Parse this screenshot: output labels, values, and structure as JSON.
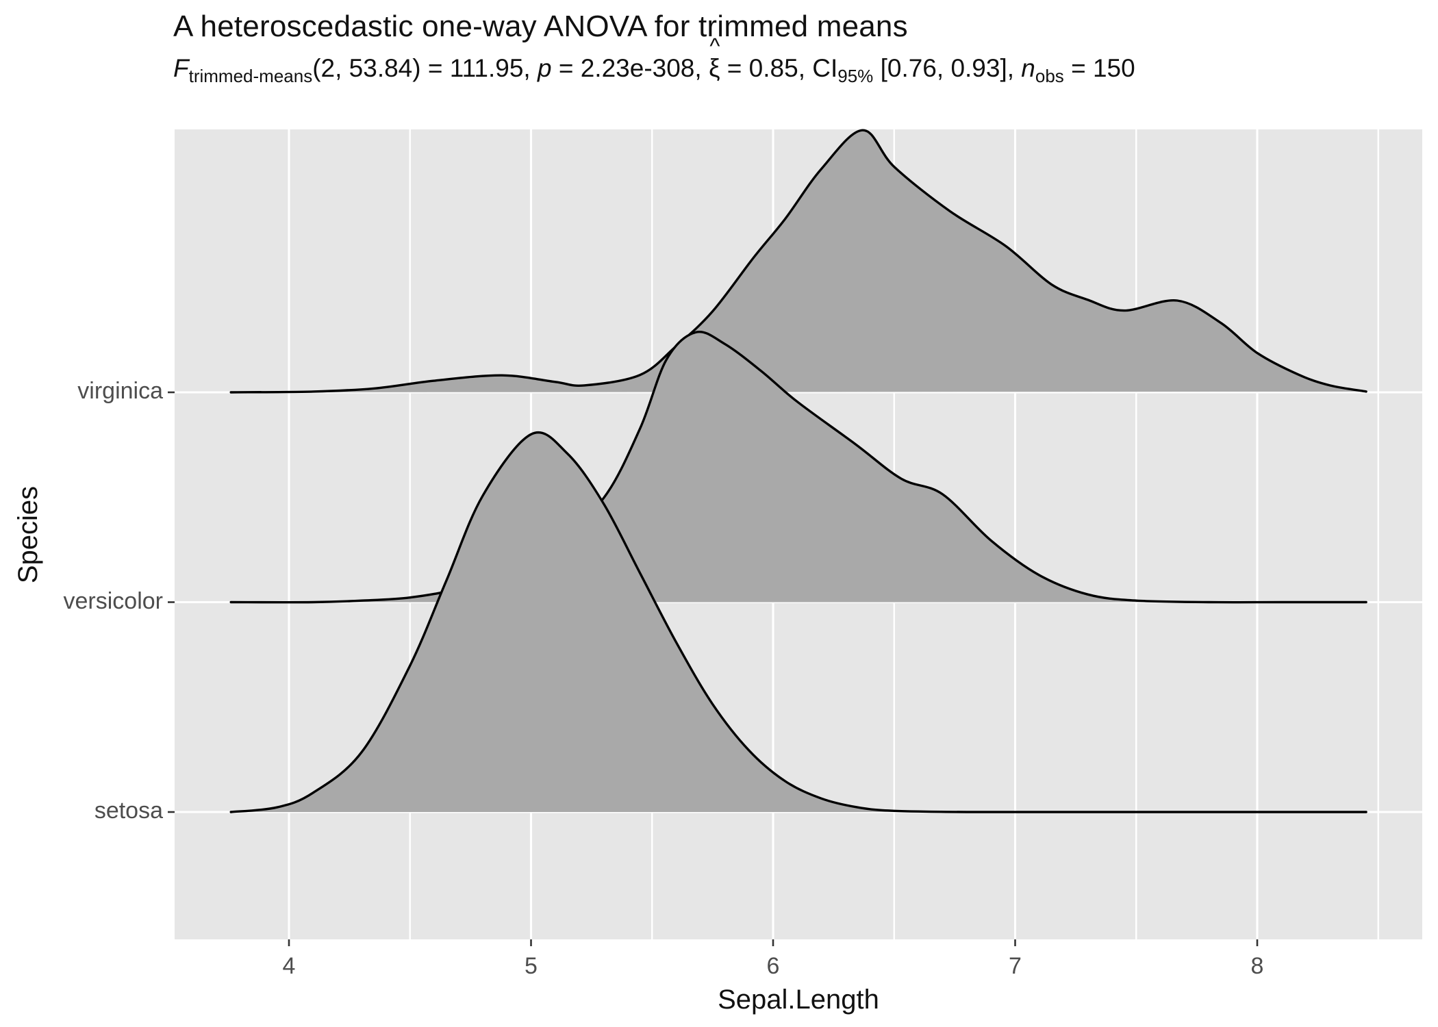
{
  "colors": {
    "background": "#ffffff",
    "panel": "#e6e6e6",
    "grid": "#ffffff",
    "ridge_fill": "#a9a9a9",
    "ridge_line": "#000000",
    "tick_mark": "#333333",
    "axis_text": "#4d4d4d",
    "title_text": "#111111"
  },
  "subtitle_parts": [
    {
      "t": "F",
      "i": true
    },
    {
      "t": "trimmed-means",
      "sub": true
    },
    {
      "t": "(2, 53.84) = 111.95, "
    },
    {
      "t": "p",
      "i": true
    },
    {
      "t": " = 2.23e-308, "
    },
    {
      "t": "ξ",
      "hat": "^"
    },
    {
      "t": " = 0.85, CI"
    },
    {
      "t": "95%",
      "sub": true
    },
    {
      "t": " [0.76, 0.93], "
    },
    {
      "t": "n",
      "i": true
    },
    {
      "t": "obs",
      "sub": true
    },
    {
      "t": " = 150"
    }
  ],
  "chart_data": {
    "type": "area",
    "variant": "ridgeline-density",
    "title": "A heteroscedastic one-way ANOVA for trimmed means",
    "xlabel": "Sepal.Length",
    "ylabel": "Species",
    "x_major_ticks": [
      4,
      5,
      6,
      7,
      8
    ],
    "x_minor_ticks": [
      4.5,
      5.5,
      6.5,
      7.5,
      8.5
    ],
    "x_panel_range": [
      3.525,
      8.685
    ],
    "curve_x_range": [
      3.76,
      8.45
    ],
    "grid": "on",
    "legend": "none",
    "categories": [
      "setosa",
      "versicolor",
      "virginica"
    ],
    "series": [
      {
        "name": "virginica",
        "row": 2,
        "peak_x": 6.37,
        "peak_density": 0.68,
        "points": [
          [
            3.76,
            0
          ],
          [
            4.1,
            0.002
          ],
          [
            4.35,
            0.01
          ],
          [
            4.6,
            0.03
          ],
          [
            4.88,
            0.044
          ],
          [
            5.1,
            0.027
          ],
          [
            5.22,
            0.018
          ],
          [
            5.45,
            0.045
          ],
          [
            5.6,
            0.12
          ],
          [
            5.75,
            0.21
          ],
          [
            5.92,
            0.35
          ],
          [
            6.05,
            0.45
          ],
          [
            6.2,
            0.58
          ],
          [
            6.37,
            0.68
          ],
          [
            6.5,
            0.585
          ],
          [
            6.73,
            0.47
          ],
          [
            6.96,
            0.38
          ],
          [
            7.15,
            0.28
          ],
          [
            7.3,
            0.24
          ],
          [
            7.45,
            0.212
          ],
          [
            7.67,
            0.238
          ],
          [
            7.85,
            0.18
          ],
          [
            8.0,
            0.102
          ],
          [
            8.17,
            0.046
          ],
          [
            8.3,
            0.018
          ],
          [
            8.45,
            0.002
          ]
        ]
      },
      {
        "name": "versicolor",
        "row": 1,
        "peak_x": 5.68,
        "peak_density": 0.7,
        "points": [
          [
            3.76,
            0
          ],
          [
            4.1,
            0
          ],
          [
            4.3,
            0.004
          ],
          [
            4.5,
            0.012
          ],
          [
            4.7,
            0.035
          ],
          [
            4.9,
            0.08
          ],
          [
            5.1,
            0.16
          ],
          [
            5.3,
            0.27
          ],
          [
            5.45,
            0.45
          ],
          [
            5.56,
            0.63
          ],
          [
            5.68,
            0.7
          ],
          [
            5.8,
            0.67
          ],
          [
            5.95,
            0.6
          ],
          [
            6.1,
            0.52
          ],
          [
            6.34,
            0.41
          ],
          [
            6.53,
            0.32
          ],
          [
            6.7,
            0.28
          ],
          [
            6.9,
            0.16
          ],
          [
            7.1,
            0.07
          ],
          [
            7.3,
            0.02
          ],
          [
            7.5,
            0.004
          ],
          [
            7.8,
            0
          ],
          [
            8.1,
            0
          ],
          [
            8.45,
            0
          ]
        ]
      },
      {
        "name": "setosa",
        "row": 0,
        "peak_x": 5.0,
        "peak_density": 0.98,
        "points": [
          [
            3.76,
            0
          ],
          [
            3.95,
            0.012
          ],
          [
            4.1,
            0.05
          ],
          [
            4.3,
            0.155
          ],
          [
            4.5,
            0.38
          ],
          [
            4.65,
            0.6
          ],
          [
            4.8,
            0.82
          ],
          [
            5.0,
            0.98
          ],
          [
            5.15,
            0.93
          ],
          [
            5.3,
            0.8
          ],
          [
            5.45,
            0.62
          ],
          [
            5.6,
            0.44
          ],
          [
            5.75,
            0.28
          ],
          [
            5.9,
            0.16
          ],
          [
            6.05,
            0.08
          ],
          [
            6.2,
            0.035
          ],
          [
            6.35,
            0.012
          ],
          [
            6.5,
            0.003
          ],
          [
            6.8,
            0
          ],
          [
            7.2,
            0
          ],
          [
            7.8,
            0
          ],
          [
            8.45,
            0
          ]
        ]
      }
    ]
  }
}
